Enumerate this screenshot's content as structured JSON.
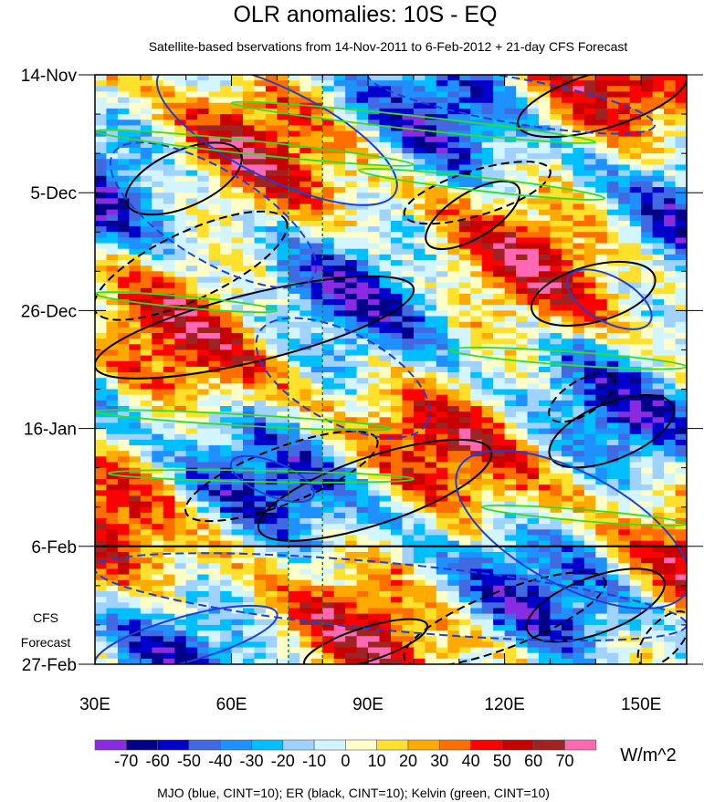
{
  "chart_data": {
    "type": "heatmap",
    "title": "OLR anomalies: 10S - EQ",
    "subtitle": "Satellite-based bservations from 14-Nov-2011 to 6-Feb-2012 + 21-day CFS Forecast",
    "xlim": [
      30,
      160
    ],
    "ylim_days": [
      0,
      105
    ],
    "x_ticks": [
      {
        "v": 30,
        "label": "30E"
      },
      {
        "v": 60,
        "label": "60E"
      },
      {
        "v": 90,
        "label": "90E"
      },
      {
        "v": 120,
        "label": "120E"
      },
      {
        "v": 150,
        "label": "150E"
      }
    ],
    "y_ticks": [
      {
        "v": 0,
        "label": "14-Nov"
      },
      {
        "v": 21,
        "label": "5-Dec"
      },
      {
        "v": 42,
        "label": "26-Dec"
      },
      {
        "v": 63,
        "label": "16-Jan"
      },
      {
        "v": 84,
        "label": "6-Feb"
      },
      {
        "v": 105,
        "label": "27-Feb"
      }
    ],
    "forecast_label": [
      "CFS",
      "Forecast"
    ],
    "forecast_start_day": 84,
    "reference_lons": [
      72.5,
      80
    ],
    "colorbar": {
      "levels": [
        "-70",
        "-60",
        "-50",
        "-40",
        "-30",
        "-20",
        "-10",
        "0",
        "10",
        "20",
        "30",
        "40",
        "50",
        "60",
        "70"
      ],
      "level_values": [
        -70,
        -60,
        -50,
        -40,
        -30,
        -20,
        -10,
        0,
        10,
        20,
        30,
        40,
        50,
        60,
        70
      ],
      "colors": [
        "#8a2be2",
        "#00008b",
        "#0000cd",
        "#4169e1",
        "#1e90ff",
        "#00bfff",
        "#a0d2ff",
        "#d2f5ff",
        "#ffffc8",
        "#ffe12d",
        "#ffaa00",
        "#ff6e00",
        "#ff0000",
        "#c80000",
        "#a02323",
        "#ff69b4"
      ],
      "units": "W/m^2"
    },
    "legend_text": "MJO (blue, CINT=10); ER (black, CINT=10); Kelvin (green, CINT=10)",
    "contours": [
      {
        "kind": "ER",
        "sign": "pos",
        "p1": [
          37,
          23
        ],
        "p2": [
          62,
          14
        ],
        "w": 5
      },
      {
        "kind": "ER",
        "sign": "pos",
        "p1": [
          103,
          30
        ],
        "p2": [
          123,
          20
        ],
        "w": 4
      },
      {
        "kind": "ER",
        "sign": "pos",
        "p1": [
          126,
          42
        ],
        "p2": [
          153,
          36
        ],
        "w": 5
      },
      {
        "kind": "ER",
        "sign": "pos",
        "p1": [
          30,
          52
        ],
        "p2": [
          100,
          38
        ],
        "w": 6
      },
      {
        "kind": "ER",
        "sign": "pos",
        "p1": [
          130,
          68
        ],
        "p2": [
          157,
          59
        ],
        "w": 5
      },
      {
        "kind": "ER",
        "sign": "pos",
        "p1": [
          66,
          81
        ],
        "p2": [
          117,
          67
        ],
        "w": 6
      },
      {
        "kind": "ER",
        "sign": "pos",
        "p1": [
          76,
          105
        ],
        "p2": [
          103,
          98
        ],
        "w": 3
      },
      {
        "kind": "ER",
        "sign": "pos",
        "p1": [
          125,
          99
        ],
        "p2": [
          155,
          90
        ],
        "w": 5
      },
      {
        "kind": "ER",
        "sign": "pos",
        "p1": [
          123,
          9
        ],
        "p2": [
          160,
          0
        ],
        "w": 5
      },
      {
        "kind": "ER",
        "sign": "neg",
        "p1": [
          30,
          42
        ],
        "p2": [
          72,
          26
        ],
        "w": 6
      },
      {
        "kind": "ER",
        "sign": "neg",
        "p1": [
          98,
          25
        ],
        "p2": [
          130,
          17
        ],
        "w": 4
      },
      {
        "kind": "ER",
        "sign": "neg",
        "p1": [
          50,
          78
        ],
        "p2": [
          92,
          65
        ],
        "w": 5
      },
      {
        "kind": "ER",
        "sign": "neg",
        "p1": [
          98,
          104
        ],
        "p2": [
          142,
          90
        ],
        "w": 5
      },
      {
        "kind": "ER",
        "sign": "neg",
        "p1": [
          130,
          61
        ],
        "p2": [
          144,
          54
        ],
        "w": 3
      },
      {
        "kind": "ER",
        "sign": "neg",
        "p1": [
          150,
          105
        ],
        "p2": [
          160,
          96
        ],
        "w": 3
      },
      {
        "kind": "MJO",
        "sign": "pos",
        "p1": [
          44,
          0
        ],
        "p2": [
          96,
          21
        ],
        "w": 8
      },
      {
        "kind": "MJO",
        "sign": "pos",
        "p1": [
          134,
          36
        ],
        "p2": [
          152,
          44
        ],
        "w": 4
      },
      {
        "kind": "MJO",
        "sign": "pos",
        "p1": [
          110,
          70
        ],
        "p2": [
          160,
          92
        ],
        "w": 10
      },
      {
        "kind": "MJO",
        "sign": "pos",
        "p1": [
          30,
          105
        ],
        "p2": [
          70,
          96
        ],
        "w": 4
      },
      {
        "kind": "MJO",
        "sign": "pos",
        "p1": [
          60,
          69
        ],
        "p2": [
          78,
          75
        ],
        "w": 3
      },
      {
        "kind": "MJO",
        "sign": "neg",
        "p1": [
          66,
          46
        ],
        "p2": [
          103,
          62
        ],
        "w": 8
      },
      {
        "kind": "MJO",
        "sign": "neg",
        "p1": [
          34,
          14
        ],
        "p2": [
          78,
          36
        ],
        "w": 8
      },
      {
        "kind": "MJO",
        "sign": "neg",
        "p1": [
          30,
          88
        ],
        "p2": [
          160,
          98
        ],
        "w": 6
      },
      {
        "kind": "MJO",
        "sign": "neg",
        "p1": [
          90,
          0
        ],
        "p2": [
          153,
          9
        ],
        "w": 4
      },
      {
        "kind": "Kelvin",
        "sign": "pos",
        "p1": [
          60,
          5
        ],
        "p2": [
          140,
          12
        ],
        "w": 1.2
      },
      {
        "kind": "Kelvin",
        "sign": "pos",
        "p1": [
          30,
          10
        ],
        "p2": [
          100,
          16
        ],
        "w": 1.2
      },
      {
        "kind": "Kelvin",
        "sign": "pos",
        "p1": [
          88,
          17
        ],
        "p2": [
          142,
          22
        ],
        "w": 1.2
      },
      {
        "kind": "Kelvin",
        "sign": "pos",
        "p1": [
          30,
          39
        ],
        "p2": [
          70,
          42
        ],
        "w": 1
      },
      {
        "kind": "Kelvin",
        "sign": "pos",
        "p1": [
          108,
          49
        ],
        "p2": [
          160,
          52
        ],
        "w": 1.2
      },
      {
        "kind": "Kelvin",
        "sign": "pos",
        "p1": [
          30,
          60
        ],
        "p2": [
          95,
          63
        ],
        "w": 1
      },
      {
        "kind": "Kelvin",
        "sign": "pos",
        "p1": [
          33,
          71
        ],
        "p2": [
          100,
          72
        ],
        "w": 1
      },
      {
        "kind": "Kelvin",
        "sign": "pos",
        "p1": [
          115,
          77
        ],
        "p2": [
          160,
          80
        ],
        "w": 1
      }
    ]
  }
}
